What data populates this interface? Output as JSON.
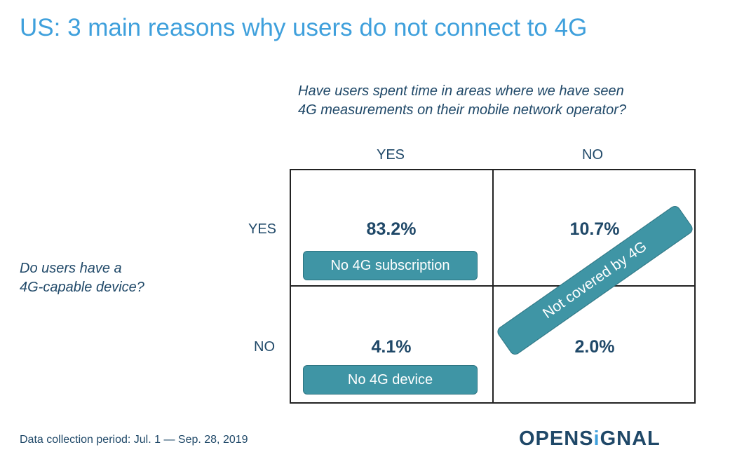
{
  "title": "US: 3 main reasons why users do not connect to 4G",
  "question_top": [
    "Have users spent time in areas where we have seen",
    "4G measurements on their mobile network operator?"
  ],
  "question_left": [
    "Do users have a",
    "4G-capable device?"
  ],
  "columns": [
    "YES",
    "NO"
  ],
  "rows": [
    "YES",
    "NO"
  ],
  "cells": {
    "yes_yes": "83.2%",
    "yes_no": "10.7%",
    "no_yes": "4.1%",
    "no_no": "2.0%"
  },
  "tags": {
    "no_subscription": "No 4G subscription",
    "no_device": "No 4G device",
    "not_covered": "Not covered by 4G"
  },
  "footer": "Data collection period: Jul. 1 — Sep. 28, 2019",
  "logo": {
    "part1": "OPENS",
    "part2": "i",
    "part3": "GNAL"
  },
  "colors": {
    "title": "#3fa0dc",
    "text": "#1f4868",
    "tag": "#3f95a5"
  }
}
